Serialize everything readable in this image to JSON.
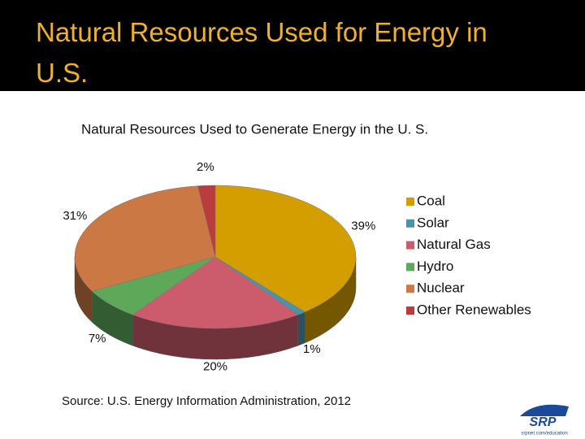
{
  "slide_title": "Natural Resources Used for Energy in U.S.",
  "chart_data": {
    "type": "pie3d",
    "title": "Natural Resources Used to Generate Energy in the U. S.",
    "categories": [
      "Coal",
      "Solar",
      "Natural Gas",
      "Hydro",
      "Nuclear",
      "Other Renewables"
    ],
    "values": [
      39,
      1,
      20,
      7,
      31,
      2
    ],
    "value_labels": [
      "39%",
      "1%",
      "20%",
      "7%",
      "31%",
      "2%"
    ],
    "colors": [
      "#d49e00",
      "#4a93ad",
      "#cc5c6c",
      "#5ea85a",
      "#cc7844",
      "#bb3c3c"
    ],
    "legend": "right",
    "source": "Source: U.S. Energy Information Administration, 2012"
  },
  "logo": {
    "text": "SRP",
    "url": "srpnet.com/education"
  }
}
